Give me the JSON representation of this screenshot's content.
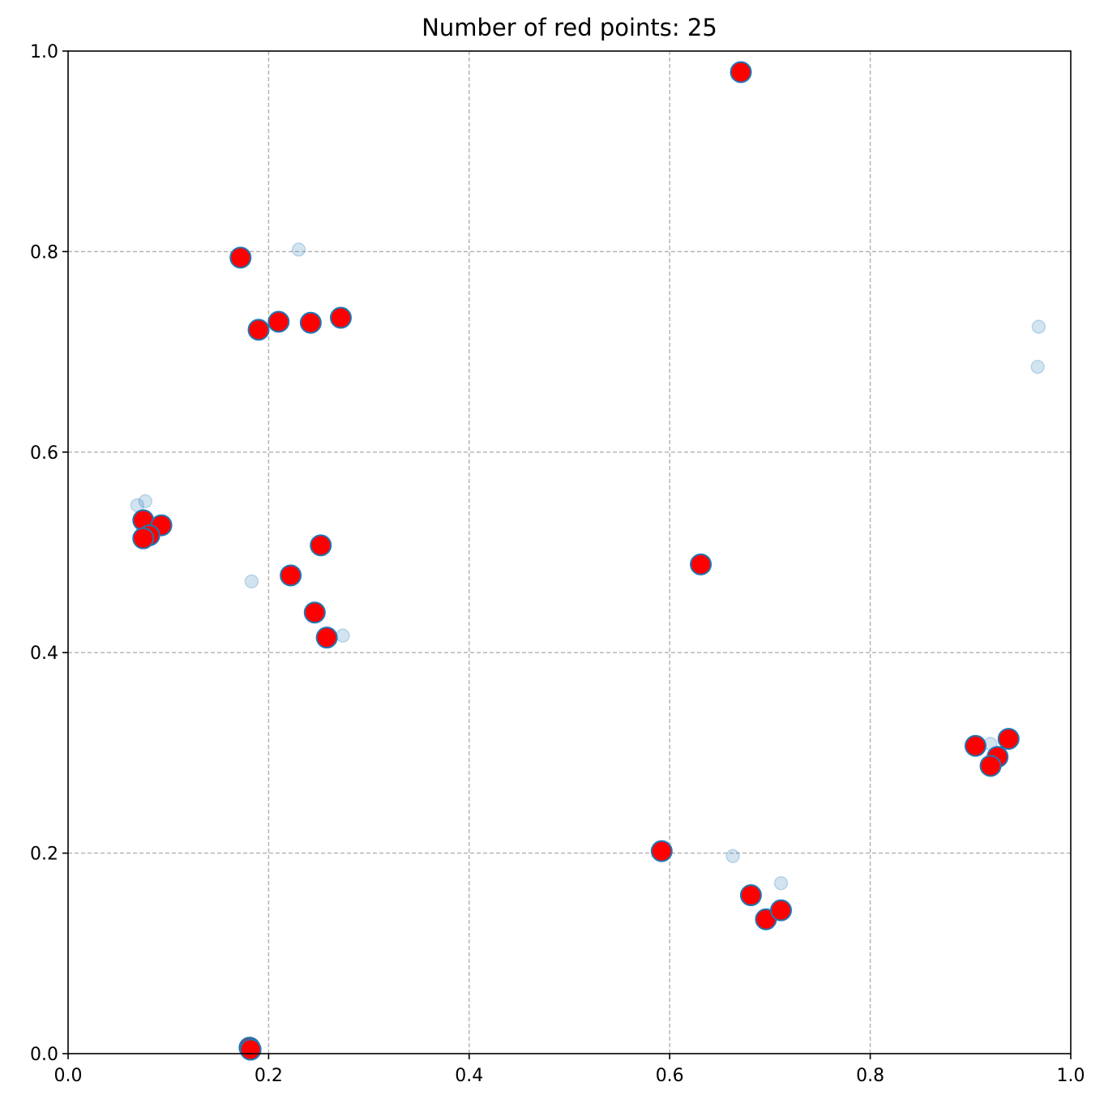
{
  "chart_data": {
    "type": "scatter",
    "title": "Number of red points: 25",
    "xlabel": "",
    "ylabel": "",
    "xlim": [
      0.0,
      1.0
    ],
    "ylim": [
      0.0,
      1.0
    ],
    "x_ticks": [
      0.0,
      0.2,
      0.4,
      0.6,
      0.8,
      1.0
    ],
    "y_ticks": [
      0.0,
      0.2,
      0.4,
      0.6,
      0.8,
      1.0
    ],
    "x_tick_labels": [
      "0.0",
      "0.2",
      "0.4",
      "0.6",
      "0.8",
      "1.0"
    ],
    "y_tick_labels": [
      "0.0",
      "0.2",
      "0.4",
      "0.6",
      "0.8",
      "1.0"
    ],
    "grid": true,
    "colors": {
      "red_fill": "#ff0000",
      "red_edge": "#1f77b4",
      "background_fill": "#1f77b4",
      "grid": "#b0b0b0"
    },
    "series": [
      {
        "role": "background",
        "opacity": 0.2,
        "points": [
          {
            "x": 0.23,
            "y": 0.802
          },
          {
            "x": 0.968,
            "y": 0.725
          },
          {
            "x": 0.967,
            "y": 0.685
          },
          {
            "x": 0.069,
            "y": 0.547
          },
          {
            "x": 0.077,
            "y": 0.551
          },
          {
            "x": 0.183,
            "y": 0.471
          },
          {
            "x": 0.274,
            "y": 0.417
          },
          {
            "x": 0.92,
            "y": 0.309
          },
          {
            "x": 0.663,
            "y": 0.197
          },
          {
            "x": 0.711,
            "y": 0.17
          }
        ]
      },
      {
        "role": "red",
        "points": [
          {
            "x": 0.671,
            "y": 0.979
          },
          {
            "x": 0.172,
            "y": 0.794
          },
          {
            "x": 0.19,
            "y": 0.722
          },
          {
            "x": 0.21,
            "y": 0.73
          },
          {
            "x": 0.242,
            "y": 0.729
          },
          {
            "x": 0.272,
            "y": 0.734
          },
          {
            "x": 0.075,
            "y": 0.532
          },
          {
            "x": 0.093,
            "y": 0.527
          },
          {
            "x": 0.081,
            "y": 0.517
          },
          {
            "x": 0.075,
            "y": 0.514
          },
          {
            "x": 0.252,
            "y": 0.507
          },
          {
            "x": 0.222,
            "y": 0.477
          },
          {
            "x": 0.246,
            "y": 0.44
          },
          {
            "x": 0.258,
            "y": 0.415
          },
          {
            "x": 0.631,
            "y": 0.488
          },
          {
            "x": 0.905,
            "y": 0.307
          },
          {
            "x": 0.938,
            "y": 0.314
          },
          {
            "x": 0.927,
            "y": 0.296
          },
          {
            "x": 0.92,
            "y": 0.287
          },
          {
            "x": 0.592,
            "y": 0.202
          },
          {
            "x": 0.681,
            "y": 0.158
          },
          {
            "x": 0.696,
            "y": 0.134
          },
          {
            "x": 0.711,
            "y": 0.143
          },
          {
            "x": 0.181,
            "y": 0.006
          },
          {
            "x": 0.182,
            "y": 0.004
          }
        ]
      }
    ]
  }
}
